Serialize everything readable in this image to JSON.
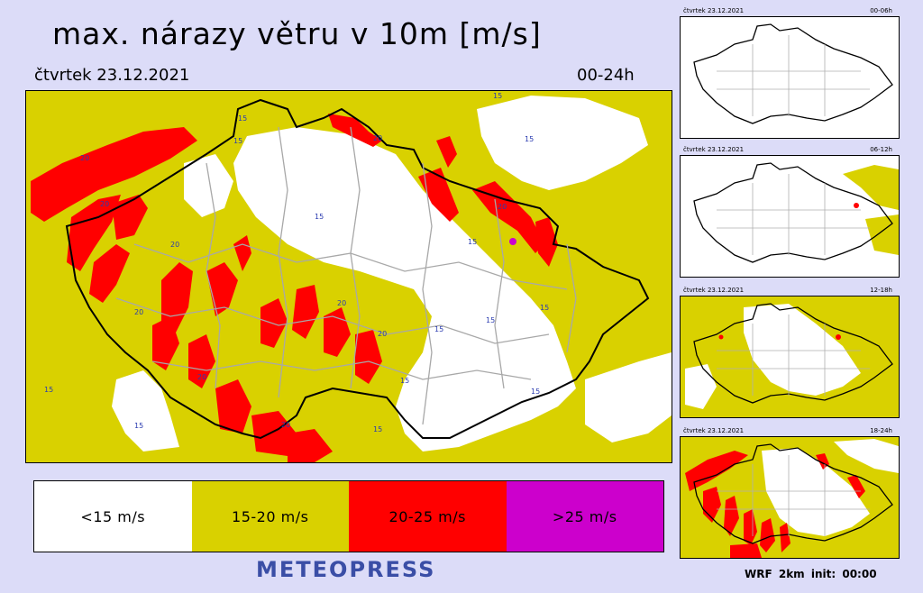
{
  "header": {
    "title": "max. nárazy větru v 10m [m/s]",
    "date": "čtvrtek 23.12.2021",
    "period": "00-24h"
  },
  "map": {
    "contour_label": "15",
    "contour_label_high": "20",
    "colors": {
      "white": "#ffffff",
      "yellow": "#d9d100",
      "red": "#ff0000",
      "magenta": "#cc00cc"
    }
  },
  "legend": [
    {
      "label": "<15 m/s",
      "color": "#ffffff"
    },
    {
      "label": "15-20 m/s",
      "color": "#d9d100"
    },
    {
      "label": "20-25 m/s",
      "color": "#ff0000"
    },
    {
      "label": ">25 m/s",
      "color": "#cc00cc"
    }
  ],
  "brand": "METEOPRESS",
  "thumbnails": [
    {
      "date": "čtvrtek 23.12.2021",
      "period": "00-06h"
    },
    {
      "date": "čtvrtek 23.12.2021",
      "period": "06-12h"
    },
    {
      "date": "čtvrtek 23.12.2021",
      "period": "12-18h"
    },
    {
      "date": "čtvrtek 23.12.2021",
      "period": "18-24h"
    }
  ],
  "footer": "WRF 2km init: 00:00"
}
